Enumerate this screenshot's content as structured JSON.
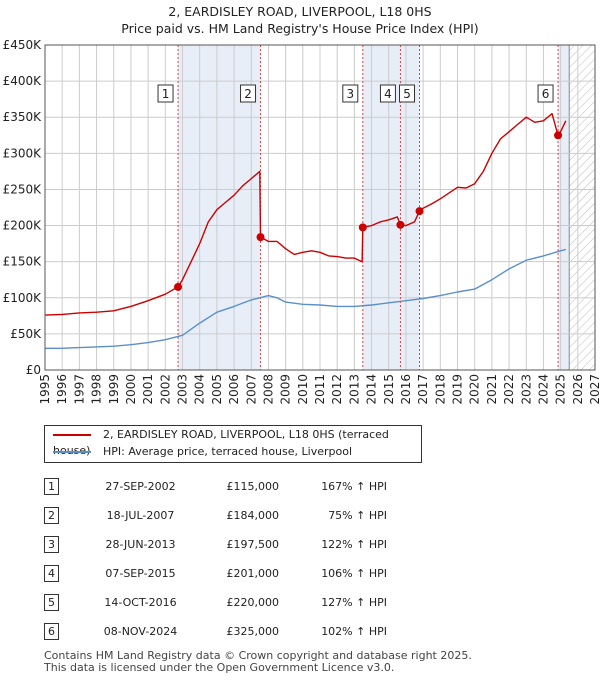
{
  "title_line1": "2, EARDISLEY ROAD, LIVERPOOL, L18 0HS",
  "title_line2": "Price paid vs. HM Land Registry's House Price Index (HPI)",
  "colors": {
    "property": "#cc0000",
    "hpi": "#5b8fc9",
    "shade": "#e8eef8",
    "grid": "#cccccc",
    "marker_line": "#dd4444"
  },
  "chart_data": {
    "type": "line",
    "x_range": [
      1995,
      2027
    ],
    "y_range": [
      0,
      450000
    ],
    "y_ticks": [
      {
        "value": 0,
        "label": "£0"
      },
      {
        "value": 50000,
        "label": "£50K"
      },
      {
        "value": 100000,
        "label": "£100K"
      },
      {
        "value": 150000,
        "label": "£150K"
      },
      {
        "value": 200000,
        "label": "£200K"
      },
      {
        "value": 250000,
        "label": "£250K"
      },
      {
        "value": 300000,
        "label": "£300K"
      },
      {
        "value": 350000,
        "label": "£350K"
      },
      {
        "value": 400000,
        "label": "£400K"
      },
      {
        "value": 450000,
        "label": "£450K"
      }
    ],
    "x_ticks": [
      "1995",
      "1996",
      "1997",
      "1998",
      "1999",
      "2000",
      "2001",
      "2002",
      "2003",
      "2004",
      "2005",
      "2006",
      "2007",
      "2008",
      "2009",
      "2010",
      "2011",
      "2012",
      "2013",
      "2014",
      "2015",
      "2016",
      "2017",
      "2018",
      "2019",
      "2020",
      "2021",
      "2022",
      "2023",
      "2024",
      "2025",
      "2026",
      "2027"
    ],
    "data_end": 2025.5,
    "shaded_spans": [
      [
        2002.74,
        2007.54
      ],
      [
        2013.49,
        2016.79
      ],
      [
        2024.85,
        2025.5
      ]
    ],
    "series": [
      {
        "name": "2, EARDISLEY ROAD, LIVERPOOL, L18 0HS (terraced house)",
        "points": [
          [
            1995,
            76000
          ],
          [
            1996,
            77000
          ],
          [
            1997,
            79000
          ],
          [
            1998,
            80000
          ],
          [
            1999,
            82000
          ],
          [
            2000,
            88000
          ],
          [
            2001,
            96000
          ],
          [
            2002,
            105000
          ],
          [
            2002.74,
            115000
          ],
          [
            2003,
            125000
          ],
          [
            2003.5,
            150000
          ],
          [
            2004,
            175000
          ],
          [
            2004.5,
            205000
          ],
          [
            2005,
            222000
          ],
          [
            2005.5,
            232000
          ],
          [
            2006,
            242000
          ],
          [
            2006.5,
            255000
          ],
          [
            2007,
            265000
          ],
          [
            2007.5,
            275000
          ],
          [
            2007.54,
            184000
          ],
          [
            2008,
            178000
          ],
          [
            2008.5,
            178000
          ],
          [
            2009,
            168000
          ],
          [
            2009.5,
            160000
          ],
          [
            2010,
            163000
          ],
          [
            2010.5,
            165000
          ],
          [
            2011,
            163000
          ],
          [
            2011.5,
            158000
          ],
          [
            2012,
            157000
          ],
          [
            2012.5,
            155000
          ],
          [
            2013,
            155000
          ],
          [
            2013.45,
            150000
          ],
          [
            2013.49,
            197500
          ],
          [
            2014,
            200000
          ],
          [
            2014.5,
            205000
          ],
          [
            2015,
            208000
          ],
          [
            2015.5,
            212000
          ],
          [
            2015.68,
            201000
          ],
          [
            2016,
            200000
          ],
          [
            2016.5,
            205000
          ],
          [
            2016.79,
            220000
          ],
          [
            2017,
            224000
          ],
          [
            2017.5,
            230000
          ],
          [
            2018,
            237000
          ],
          [
            2018.5,
            245000
          ],
          [
            2019,
            253000
          ],
          [
            2019.5,
            252000
          ],
          [
            2020,
            258000
          ],
          [
            2020.5,
            275000
          ],
          [
            2021,
            300000
          ],
          [
            2021.5,
            320000
          ],
          [
            2022,
            330000
          ],
          [
            2022.5,
            340000
          ],
          [
            2023,
            350000
          ],
          [
            2023.5,
            343000
          ],
          [
            2024,
            345000
          ],
          [
            2024.5,
            355000
          ],
          [
            2024.85,
            325000
          ],
          [
            2025,
            330000
          ],
          [
            2025.3,
            345000
          ]
        ]
      },
      {
        "name": "HPI: Average price, terraced house, Liverpool",
        "points": [
          [
            1995,
            30000
          ],
          [
            1996,
            30000
          ],
          [
            1997,
            31000
          ],
          [
            1998,
            32000
          ],
          [
            1999,
            33000
          ],
          [
            2000,
            35000
          ],
          [
            2001,
            38000
          ],
          [
            2002,
            42000
          ],
          [
            2003,
            48000
          ],
          [
            2004,
            65000
          ],
          [
            2005,
            80000
          ],
          [
            2006,
            88000
          ],
          [
            2007,
            97000
          ],
          [
            2008,
            103000
          ],
          [
            2008.5,
            100000
          ],
          [
            2009,
            94000
          ],
          [
            2010,
            91000
          ],
          [
            2011,
            90000
          ],
          [
            2012,
            88000
          ],
          [
            2013,
            88000
          ],
          [
            2014,
            90000
          ],
          [
            2015,
            93000
          ],
          [
            2016,
            96000
          ],
          [
            2017,
            99000
          ],
          [
            2018,
            103000
          ],
          [
            2019,
            108000
          ],
          [
            2020,
            112000
          ],
          [
            2021,
            125000
          ],
          [
            2022,
            140000
          ],
          [
            2023,
            152000
          ],
          [
            2024,
            158000
          ],
          [
            2025,
            165000
          ],
          [
            2025.3,
            167000
          ]
        ]
      }
    ],
    "markers": [
      {
        "label": "1",
        "x": 2002.74,
        "y": 115000
      },
      {
        "label": "2",
        "x": 2007.54,
        "y": 184000
      },
      {
        "label": "3",
        "x": 2013.49,
        "y": 197500
      },
      {
        "label": "4",
        "x": 2015.68,
        "y": 201000
      },
      {
        "label": "5",
        "x": 2016.79,
        "y": 220000
      },
      {
        "label": "6",
        "x": 2024.85,
        "y": 325000
      }
    ]
  },
  "legend": {
    "property": "2, EARDISLEY ROAD, LIVERPOOL, L18 0HS (terraced house)",
    "hpi": "HPI: Average price, terraced house, Liverpool"
  },
  "transactions": [
    {
      "num": "1",
      "date": "27-SEP-2002",
      "price": "£115,000",
      "hpi": "167% ↑ HPI"
    },
    {
      "num": "2",
      "date": "18-JUL-2007",
      "price": "£184,000",
      "hpi": "75% ↑ HPI"
    },
    {
      "num": "3",
      "date": "28-JUN-2013",
      "price": "£197,500",
      "hpi": "122% ↑ HPI"
    },
    {
      "num": "4",
      "date": "07-SEP-2015",
      "price": "£201,000",
      "hpi": "106% ↑ HPI"
    },
    {
      "num": "5",
      "date": "14-OCT-2016",
      "price": "£220,000",
      "hpi": "127% ↑ HPI"
    },
    {
      "num": "6",
      "date": "08-NOV-2024",
      "price": "£325,000",
      "hpi": "102% ↑ HPI"
    }
  ],
  "footer_line1": "Contains HM Land Registry data © Crown copyright and database right 2025.",
  "footer_line2": "This data is licensed under the Open Government Licence v3.0."
}
